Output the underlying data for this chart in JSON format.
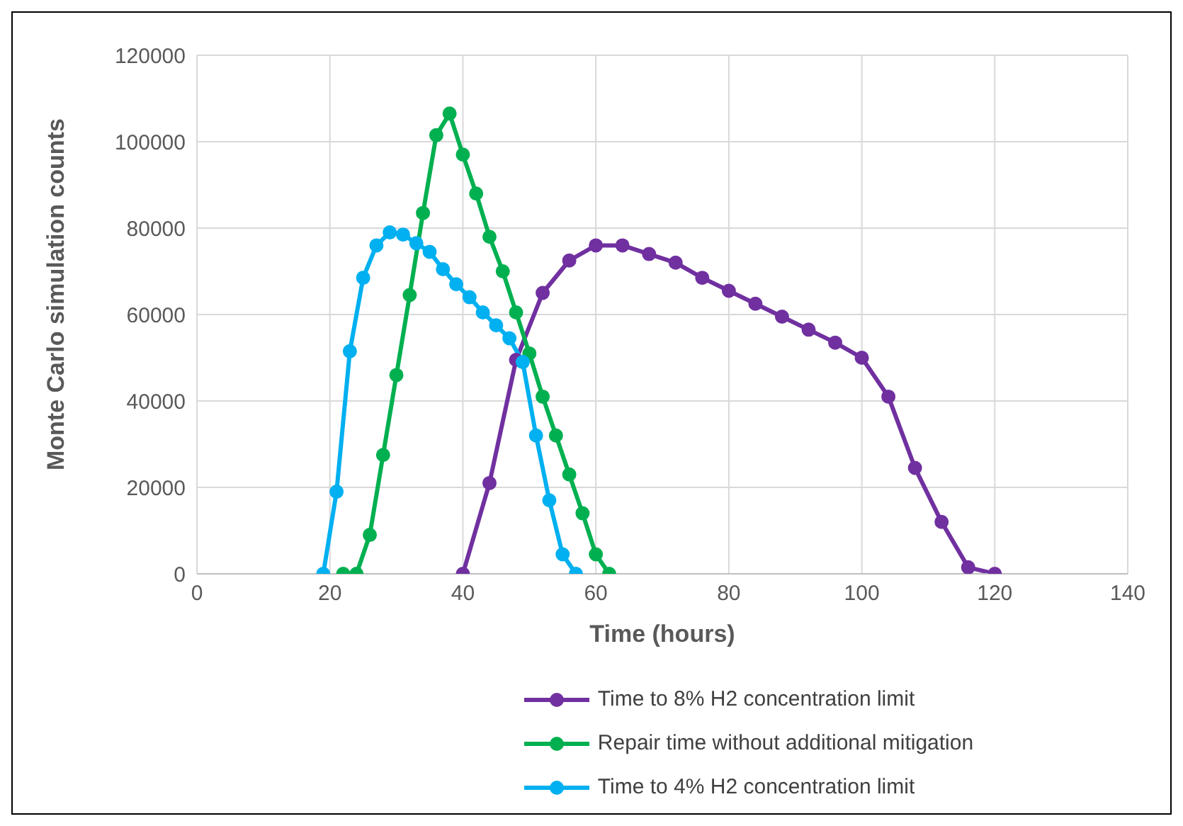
{
  "chart_data": {
    "type": "line",
    "xlabel": "Time (hours)",
    "ylabel": "Monte Carlo simulation counts",
    "xlim": [
      0,
      140
    ],
    "xticks": [
      0,
      20,
      40,
      60,
      80,
      100,
      120,
      140
    ],
    "ylim": [
      0,
      120000
    ],
    "yticks": [
      0,
      20000,
      40000,
      60000,
      80000,
      100000,
      120000
    ],
    "grid": true,
    "legend": "bottom",
    "marker": "circle",
    "series": [
      {
        "name": "Time to 8% H2 concentration limit",
        "color": "#7030a0",
        "x": [
          40,
          44,
          48,
          52,
          56,
          60,
          64,
          68,
          72,
          76,
          80,
          84,
          88,
          92,
          96,
          100,
          104,
          108,
          112,
          116,
          120
        ],
        "values": [
          0,
          21000,
          49500,
          65000,
          72500,
          76000,
          76000,
          74000,
          72000,
          68500,
          65500,
          62500,
          59500,
          56500,
          53500,
          50000,
          41000,
          24500,
          12000,
          1500,
          0
        ]
      },
      {
        "name": "Repair time without additional mitigation",
        "color": "#00b050",
        "x": [
          22,
          24,
          26,
          28,
          30,
          32,
          34,
          36,
          38,
          40,
          42,
          44,
          46,
          48,
          50,
          52,
          54,
          56,
          58,
          60,
          62
        ],
        "values": [
          0,
          0,
          9000,
          27500,
          46000,
          64500,
          83500,
          101500,
          106500,
          97000,
          88000,
          78000,
          70000,
          60500,
          51000,
          41000,
          32000,
          23000,
          14000,
          4500,
          0
        ]
      },
      {
        "name": "Time to 4% H2 concentration limit",
        "color": "#00b0f0",
        "x": [
          19,
          21,
          23,
          25,
          27,
          29,
          31,
          33,
          35,
          37,
          39,
          41,
          43,
          45,
          47,
          49,
          51,
          53,
          55,
          57
        ],
        "values": [
          0,
          19000,
          51500,
          68500,
          76000,
          79000,
          78500,
          76500,
          74500,
          70500,
          67000,
          64000,
          60500,
          57500,
          54500,
          49000,
          32000,
          17000,
          4500,
          0
        ]
      }
    ]
  }
}
